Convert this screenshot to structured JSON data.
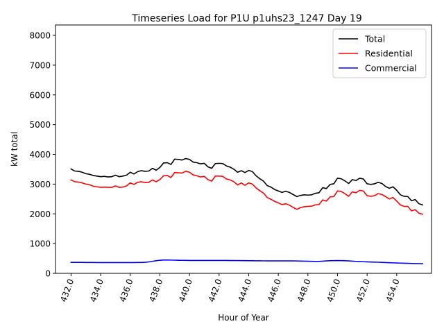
{
  "chart_data": {
    "type": "line",
    "title": "Timeseries Load for P1U p1uhs23_1247  Day 19",
    "xlabel": "Hour of Year",
    "ylabel": "kW total",
    "xlim": [
      430.95,
      456.35
    ],
    "ylim": [
      0,
      8350
    ],
    "x_ticks": [
      432,
      434,
      436,
      438,
      440,
      442,
      444,
      446,
      448,
      450,
      452,
      454
    ],
    "x_tick_labels": [
      "432.0",
      "434.0",
      "436.0",
      "438.0",
      "440.0",
      "442.0",
      "444.0",
      "446.0",
      "448.0",
      "450.0",
      "452.0",
      "454.0"
    ],
    "y_ticks": [
      0,
      1000,
      2000,
      3000,
      4000,
      5000,
      6000,
      7000,
      8000
    ],
    "y_tick_labels": [
      "0",
      "1000",
      "2000",
      "3000",
      "4000",
      "5000",
      "6000",
      "7000",
      "8000"
    ],
    "legend_position": "top-right",
    "x_start": 432.0,
    "x_step": 0.25,
    "series": [
      {
        "name": "Total",
        "color": "#000000",
        "values": [
          3510,
          3440,
          3430,
          3400,
          3350,
          3330,
          3290,
          3270,
          3250,
          3260,
          3240,
          3250,
          3300,
          3250,
          3270,
          3300,
          3400,
          3340,
          3420,
          3450,
          3430,
          3440,
          3530,
          3470,
          3560,
          3710,
          3720,
          3660,
          3840,
          3830,
          3810,
          3860,
          3830,
          3740,
          3720,
          3680,
          3700,
          3580,
          3530,
          3690,
          3700,
          3690,
          3610,
          3570,
          3500,
          3400,
          3450,
          3390,
          3460,
          3420,
          3280,
          3180,
          3100,
          2950,
          2900,
          2820,
          2770,
          2720,
          2760,
          2720,
          2650,
          2580,
          2620,
          2640,
          2630,
          2640,
          2690,
          2710,
          2880,
          2850,
          2990,
          3010,
          3200,
          3180,
          3110,
          3020,
          3150,
          3120,
          3200,
          3170,
          3010,
          2990,
          3010,
          3060,
          3020,
          2920,
          2860,
          2910,
          2790,
          2640,
          2590,
          2580,
          2440,
          2480,
          2340,
          2300
        ]
      },
      {
        "name": "Residential",
        "color": "#ff0000",
        "values": [
          3140,
          3080,
          3070,
          3040,
          3000,
          2980,
          2930,
          2910,
          2890,
          2900,
          2890,
          2890,
          2940,
          2890,
          2900,
          2940,
          3040,
          2990,
          3060,
          3080,
          3050,
          3060,
          3140,
          3080,
          3150,
          3280,
          3290,
          3220,
          3390,
          3380,
          3370,
          3430,
          3400,
          3310,
          3280,
          3240,
          3260,
          3150,
          3100,
          3270,
          3270,
          3260,
          3170,
          3140,
          3080,
          2970,
          3040,
          2960,
          3040,
          3000,
          2870,
          2780,
          2700,
          2550,
          2490,
          2420,
          2370,
          2310,
          2340,
          2290,
          2220,
          2150,
          2210,
          2240,
          2250,
          2260,
          2300,
          2310,
          2470,
          2430,
          2570,
          2580,
          2770,
          2750,
          2680,
          2590,
          2740,
          2710,
          2790,
          2770,
          2610,
          2590,
          2610,
          2680,
          2650,
          2580,
          2500,
          2550,
          2430,
          2300,
          2250,
          2250,
          2100,
          2140,
          2020,
          1990
        ]
      },
      {
        "name": "Commercial",
        "color": "#0000ff",
        "values": [
          370,
          370,
          369,
          368,
          367,
          366,
          365,
          364,
          363,
          363,
          362,
          362,
          362,
          362,
          362,
          363,
          363,
          364,
          365,
          367,
          372,
          385,
          405,
          425,
          440,
          448,
          448,
          446,
          443,
          440,
          437,
          435,
          434,
          433,
          433,
          433,
          433,
          433,
          433,
          433,
          433,
          432,
          432,
          431,
          430,
          429,
          428,
          427,
          425,
          424,
          422,
          421,
          420,
          419,
          419,
          419,
          419,
          419,
          419,
          419,
          418,
          416,
          413,
          410,
          406,
          403,
          400,
          400,
          410,
          418,
          424,
          428,
          430,
          428,
          424,
          418,
          410,
          402,
          396,
          391,
          386,
          381,
          377,
          373,
          368,
          363,
          358,
          353,
          348,
          344,
          340,
          336,
          331,
          327,
          324,
          322
        ]
      }
    ]
  }
}
